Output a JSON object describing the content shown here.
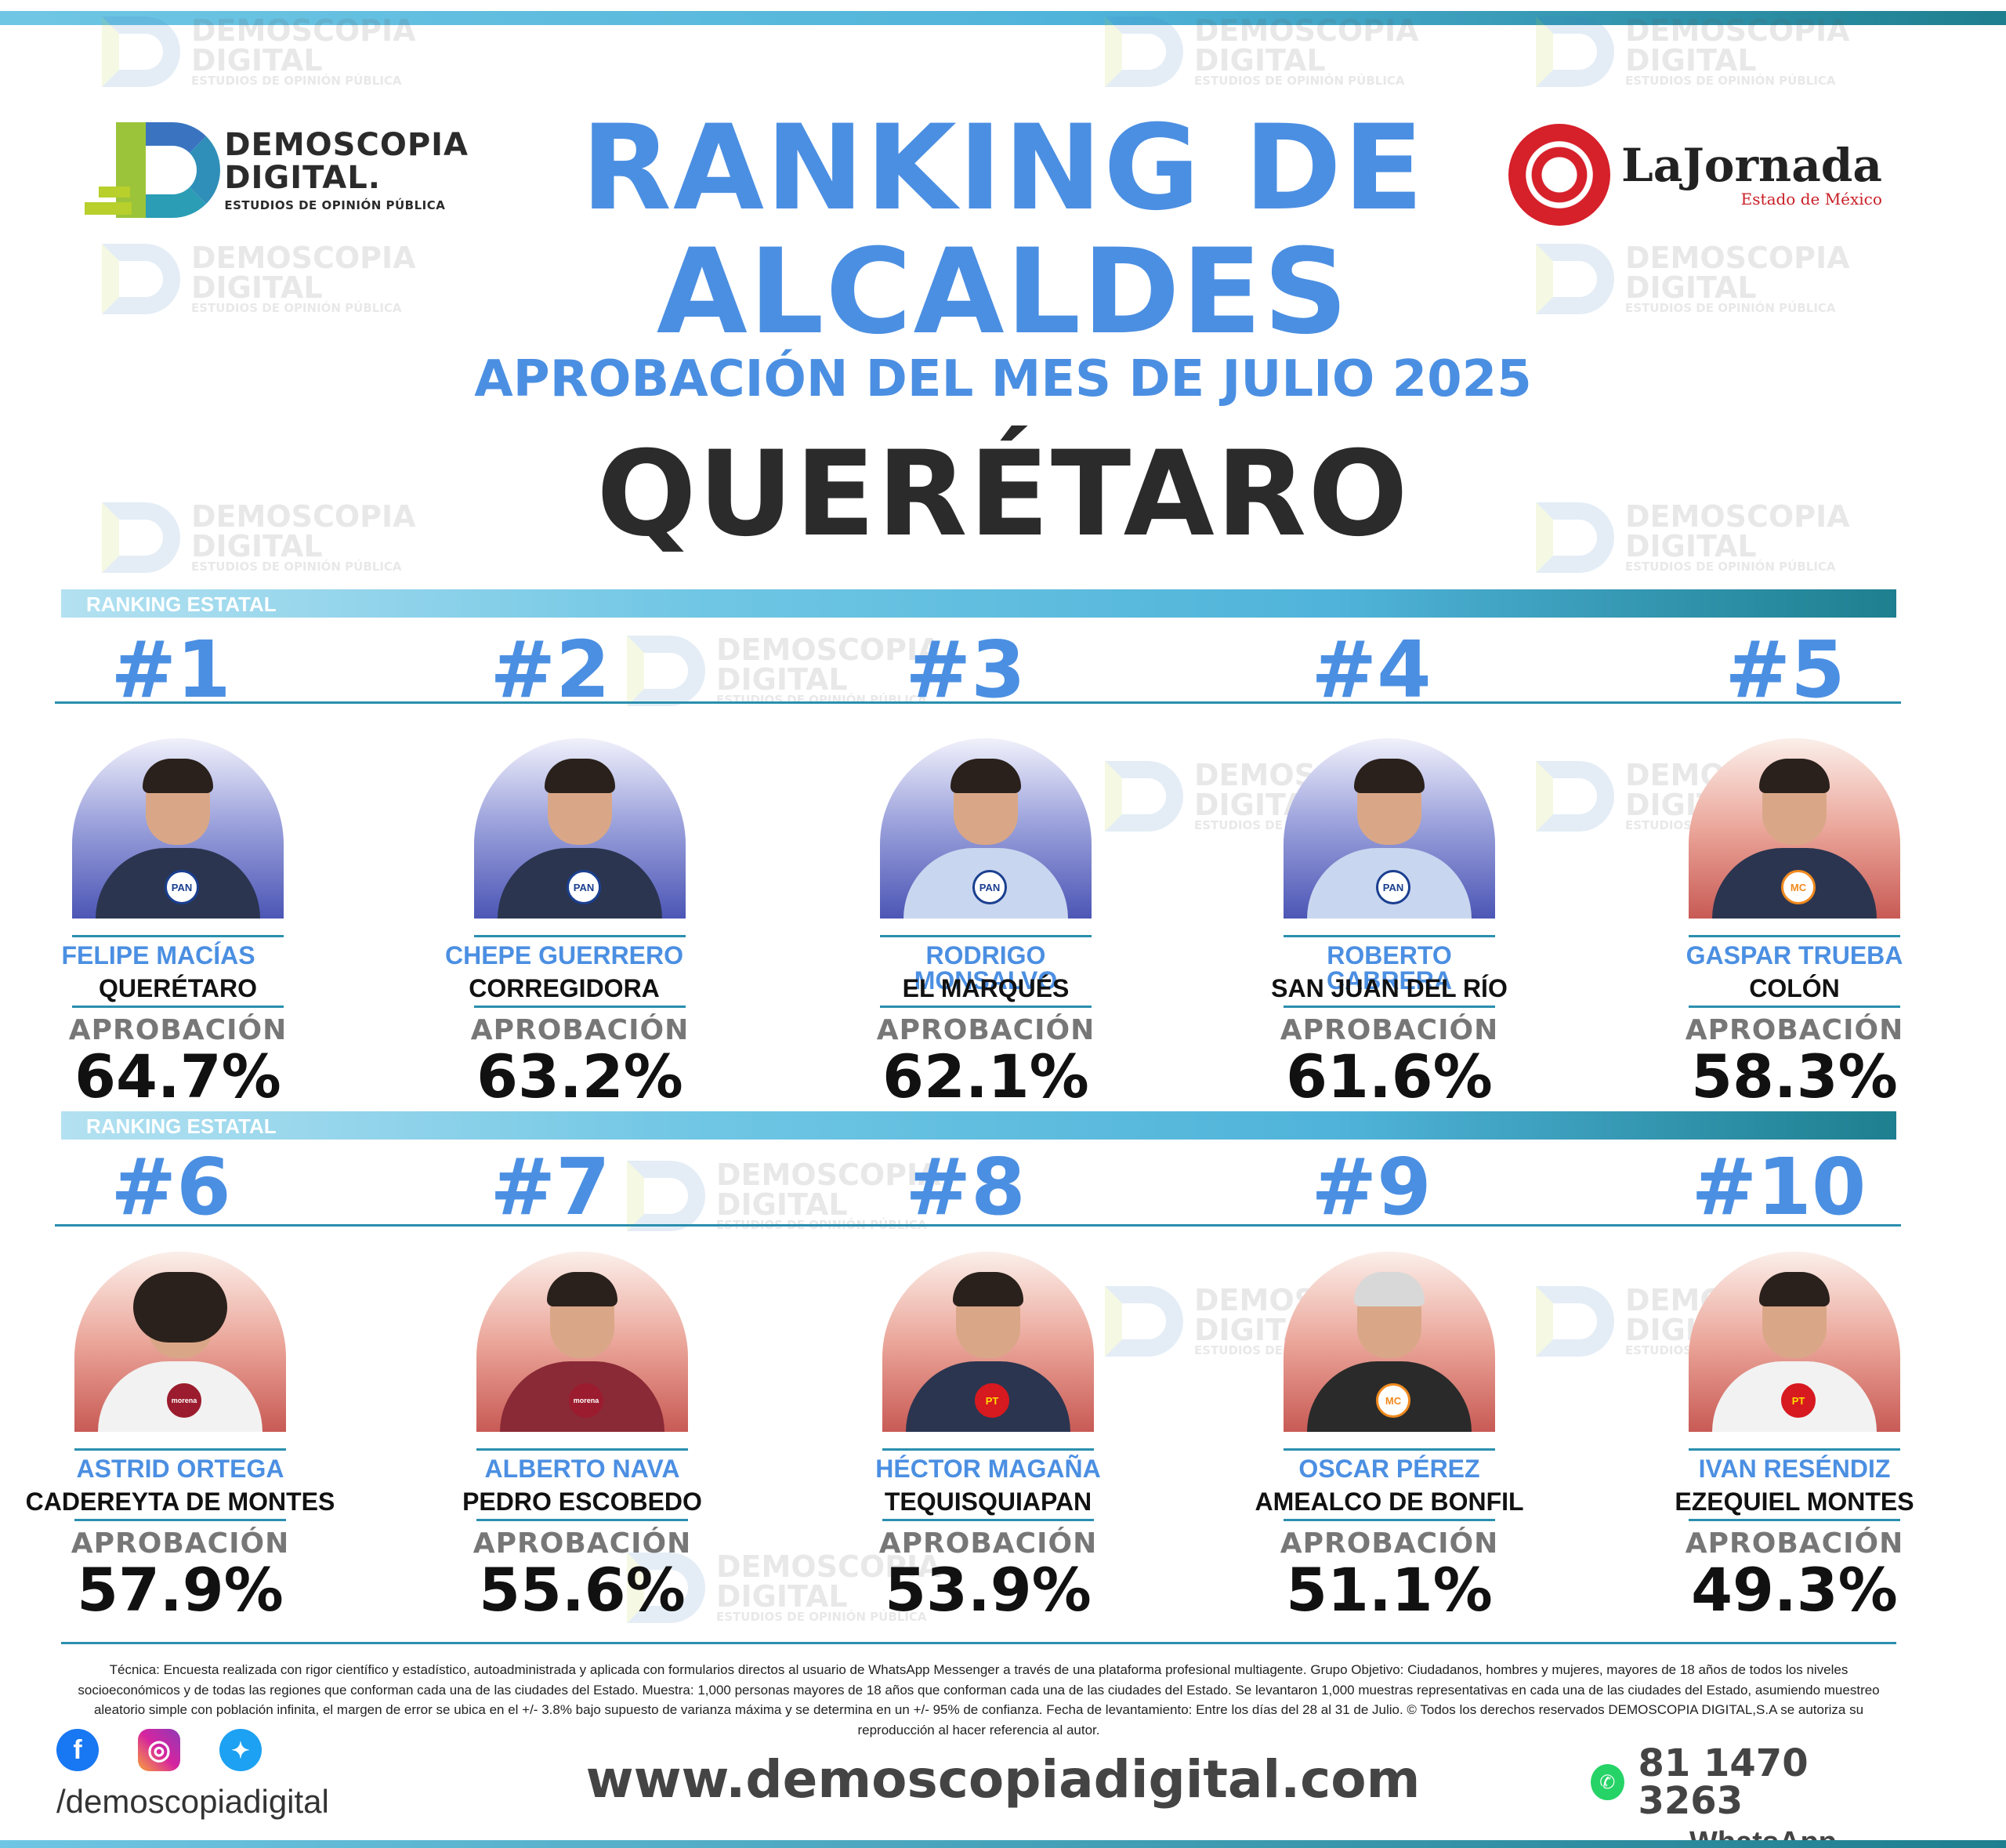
{
  "watermark": {
    "line1": "DEMOSCOPIA",
    "line2": "DIGITAL",
    "line3": "ESTUDIOS DE OPINIÓN PÚBLICA"
  },
  "logo_left": {
    "line1": "DEMOSCOPIA",
    "line2": "DIGITAL.",
    "line3": "ESTUDIOS DE OPINIÓN PÚBLICA"
  },
  "logo_right": {
    "name": "LaJornada",
    "sub": "Estado de México"
  },
  "title_line1": "RANKING DE",
  "title_line2": "ALCALDES",
  "subtitle": "APROBACIÓN DEL MES DE JULIO 2025",
  "state": "QUERÉTARO",
  "ranking_label": "RANKING ESTATAL",
  "approval_label": "APROBACIÓN",
  "ranking": [
    {
      "rank": "#1",
      "name": "FELIPE MACÍAS",
      "municipality": "QUERÉTARO",
      "approval": "64.7%",
      "party": "PAN"
    },
    {
      "rank": "#2",
      "name": "CHEPE GUERRERO",
      "municipality": "CORREGIDORA",
      "approval": "63.2%",
      "party": "PAN"
    },
    {
      "rank": "#3",
      "name": "RODRIGO MONSALVO",
      "municipality": "EL MARQUÉS",
      "approval": "62.1%",
      "party": "PAN"
    },
    {
      "rank": "#4",
      "name": "ROBERTO CABRERA",
      "municipality": "SAN JUAN DEL RÍO",
      "approval": "61.6%",
      "party": "PAN"
    },
    {
      "rank": "#5",
      "name": "GASPAR TRUEBA",
      "municipality": "COLÓN",
      "approval": "58.3%",
      "party": "MC"
    },
    {
      "rank": "#6",
      "name": "ASTRID ORTEGA",
      "municipality": "CADEREYTA DE MONTES",
      "approval": "57.9%",
      "party": "morena"
    },
    {
      "rank": "#7",
      "name": "ALBERTO NAVA",
      "municipality": "PEDRO ESCOBEDO",
      "approval": "55.6%",
      "party": "morena"
    },
    {
      "rank": "#8",
      "name": "HÉCTOR MAGAÑA",
      "municipality": "TEQUISQUIAPAN",
      "approval": "53.9%",
      "party": "PT"
    },
    {
      "rank": "#9",
      "name": "OSCAR PÉREZ",
      "municipality": "AMEALCO DE BONFIL",
      "approval": "51.1%",
      "party": "MC"
    },
    {
      "rank": "#10",
      "name": "IVAN RESÉNDIZ",
      "municipality": "EZEQUIEL MONTES",
      "approval": "49.3%",
      "party": "PT"
    }
  ],
  "tecnica": "Técnica: Encuesta realizada con rigor científico y estadístico, autoadministrada y aplicada con formularios directos al usuario de WhatsApp Messenger a través de una plataforma profesional multiagente. Grupo Objetivo: Ciudadanos, hombres y mujeres, mayores de 18 años de todos los niveles socioeconómicos y de todas las regiones que conforman cada una de las ciudades del Estado. Muestra: 1,000 personas mayores de 18 años que conforman cada una de las ciudades del Estado. Se levantaron 1,000 muestras representativas en cada una de las ciudades del Estado, asumiendo muestreo aleatorio simple con población infinita, el margen de error se ubica en el +/- 3.8% bajo supuesto de varianza máxima y se determina en un +/- 95% de confianza. Fecha de levantamiento: Entre los días del 28 al 31 de Julio. © Todos los derechos reservados DEMOSCOPIA DIGITAL,S.A se autoriza su reproducción al hacer referencia al autor.",
  "social": {
    "handle": "/demoscopiadigital",
    "icons": [
      "facebook-icon",
      "instagram-icon",
      "twitter-icon"
    ]
  },
  "website": "www.demoscopiadigital.com",
  "whatsapp": {
    "phone": "81 1470 3263",
    "label": "WhatsApp"
  },
  "colors": {
    "title_blue": "#4b8fe2",
    "pan_bg": "#4c56b5",
    "mc_bg": "#f08a1e",
    "morena_bg": "#9b1c2e",
    "pt_bg": "#d71920"
  }
}
